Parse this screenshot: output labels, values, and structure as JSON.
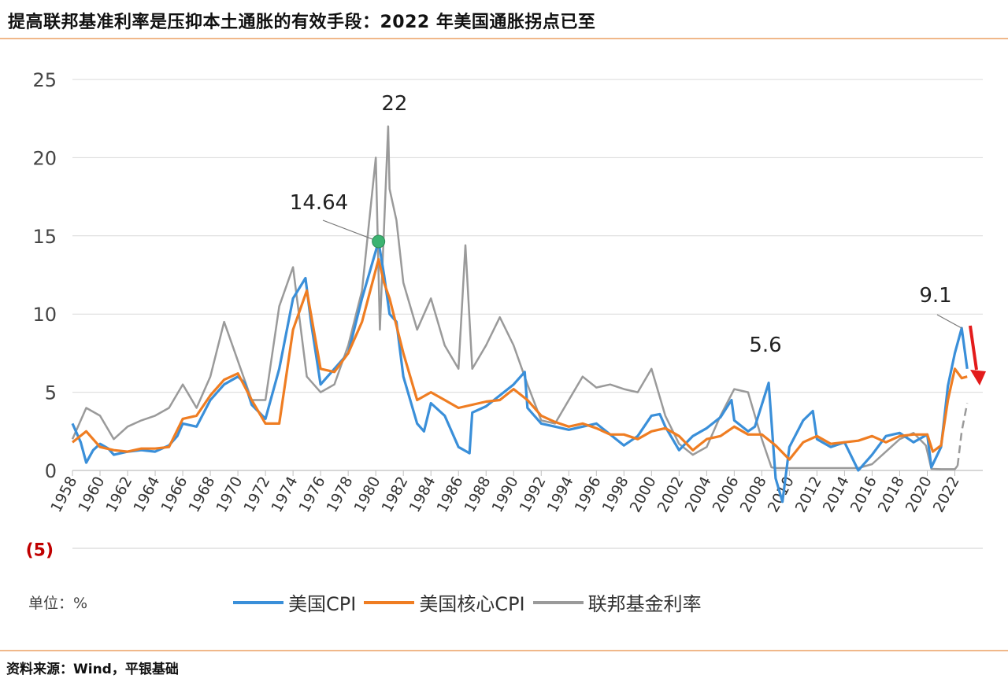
{
  "title": "提高联邦基准利率是压抑本土通胀的有效手段：2022 年美国通胀拐点已至",
  "unit_label": "单位：%",
  "source": "资料来源：Wind，平银基础",
  "chart_data": {
    "type": "line",
    "title": "提高联邦基准利率是压抑本土通胀的有效手段：2022 年美国通胀拐点已至",
    "xlabel": "",
    "ylabel": "单位：%",
    "xlim": [
      1958,
      2023
    ],
    "ylim": [
      -5,
      25
    ],
    "yticks": [
      {
        "value": 25,
        "label": "25"
      },
      {
        "value": 20,
        "label": "20"
      },
      {
        "value": 15,
        "label": "15"
      },
      {
        "value": 10,
        "label": "10"
      },
      {
        "value": 5,
        "label": "5"
      },
      {
        "value": 0,
        "label": "0"
      },
      {
        "value": -5,
        "label": "(5)"
      }
    ],
    "xticks": [
      "1958",
      "1960",
      "1962",
      "1964",
      "1966",
      "1968",
      "1970",
      "1972",
      "1974",
      "1976",
      "1978",
      "1980",
      "1982",
      "1984",
      "1986",
      "1988",
      "1990",
      "1992",
      "1994",
      "1996",
      "1998",
      "2000",
      "2002",
      "2004",
      "2006",
      "2008",
      "2010",
      "2012",
      "2014",
      "2016",
      "2018",
      "2020",
      "2022"
    ],
    "grid": true,
    "legend": "bottom",
    "series": [
      {
        "name": "美国CPI",
        "color": "#3a8fd9",
        "x": [
          1958,
          1958.6,
          1959,
          1959.5,
          1960,
          1960.6,
          1961,
          1962,
          1963,
          1964,
          1965,
          1965.6,
          1966,
          1967,
          1968,
          1969,
          1970,
          1970.5,
          1971,
          1972,
          1973,
          1974,
          1974.9,
          1975.3,
          1976,
          1977,
          1978,
          1979,
          1980.2,
          1980.6,
          1981,
          1981.5,
          1982,
          1983,
          1983.5,
          1984,
          1985,
          1986,
          1986.8,
          1987,
          1988,
          1989,
          1990,
          1990.8,
          1991,
          1992,
          1993,
          1994,
          1995,
          1996,
          1997,
          1998,
          1999,
          2000,
          2000.6,
          2001,
          2002,
          2003,
          2004,
          2005,
          2005.8,
          2006,
          2007,
          2007.5,
          2008.5,
          2009,
          2009.5,
          2010,
          2011,
          2011.7,
          2012,
          2013,
          2014,
          2015,
          2016,
          2017,
          2018,
          2019,
          2020,
          2020.3,
          2021,
          2021.5,
          2022,
          2022.5,
          2022.9
        ],
        "y": [
          3,
          1.8,
          0.5,
          1.3,
          1.7,
          1.4,
          1,
          1.2,
          1.3,
          1.2,
          1.6,
          2.2,
          3,
          2.8,
          4.5,
          5.5,
          6,
          5.6,
          4.2,
          3.3,
          6.5,
          11,
          12.3,
          9.5,
          5.5,
          6.5,
          7.5,
          11,
          14.64,
          12.5,
          10,
          9.5,
          6,
          3,
          2.5,
          4.3,
          3.5,
          1.5,
          1.1,
          3.7,
          4.1,
          4.8,
          5.5,
          6.3,
          4,
          3,
          2.8,
          2.6,
          2.8,
          3,
          2.3,
          1.6,
          2.2,
          3.5,
          3.6,
          2.8,
          1.3,
          2.2,
          2.7,
          3.4,
          4.5,
          3.2,
          2.5,
          2.8,
          5.6,
          -0.5,
          -2,
          1.5,
          3.2,
          3.8,
          2,
          1.5,
          1.8,
          0,
          1,
          2.2,
          2.4,
          1.8,
          2.3,
          0.2,
          1.5,
          5.4,
          7.5,
          9.1,
          6.5
        ]
      },
      {
        "name": "美国核心CPI",
        "color": "#ef7d22",
        "x": [
          1958,
          1959,
          1960,
          1961,
          1962,
          1963,
          1964,
          1965,
          1966,
          1967,
          1968,
          1969,
          1970,
          1971,
          1972,
          1973,
          1974,
          1975,
          1976,
          1977,
          1978,
          1979,
          1980.2,
          1980.6,
          1981,
          1982,
          1983,
          1984,
          1985,
          1986,
          1987,
          1988,
          1989,
          1990,
          1991,
          1992,
          1993,
          1994,
          1995,
          1996,
          1997,
          1998,
          1999,
          2000,
          2001,
          2002,
          2003,
          2004,
          2005,
          2006,
          2007,
          2008,
          2009,
          2010,
          2011,
          2012,
          2013,
          2014,
          2015,
          2016,
          2017,
          2018,
          2019,
          2020,
          2020.4,
          2021,
          2021.5,
          2022,
          2022.5,
          2022.9
        ],
        "y": [
          1.8,
          2.5,
          1.5,
          1.3,
          1.2,
          1.4,
          1.4,
          1.5,
          3.3,
          3.5,
          4.8,
          5.8,
          6.2,
          4.5,
          3,
          3,
          9,
          11.5,
          6.5,
          6.3,
          7.5,
          9.5,
          13.5,
          12,
          11,
          7.5,
          4.5,
          5,
          4.5,
          4,
          4.2,
          4.4,
          4.5,
          5.2,
          4.5,
          3.5,
          3.1,
          2.8,
          3,
          2.7,
          2.3,
          2.3,
          2,
          2.5,
          2.7,
          2.2,
          1.3,
          2,
          2.2,
          2.8,
          2.3,
          2.3,
          1.6,
          0.7,
          1.8,
          2.2,
          1.7,
          1.8,
          1.9,
          2.2,
          1.8,
          2.2,
          2.3,
          2.3,
          1.2,
          1.6,
          4.5,
          6.5,
          5.9,
          6
        ]
      },
      {
        "name": "联邦基金利率",
        "color": "#9a9a9a",
        "x": [
          1958,
          1959,
          1960,
          1961,
          1962,
          1963,
          1964,
          1965,
          1966,
          1967,
          1968,
          1969,
          1970,
          1971,
          1972,
          1973,
          1974,
          1975,
          1976,
          1977,
          1978,
          1979,
          1980,
          1980.3,
          1980.9,
          1981,
          1981.5,
          1982,
          1983,
          1984,
          1985,
          1986,
          1986.5,
          1987,
          1988,
          1989,
          1990,
          1991,
          1992,
          1993,
          1994,
          1995,
          1996,
          1997,
          1998,
          1999,
          2000,
          2001,
          2002,
          2003,
          2004,
          2005,
          2006,
          2007,
          2008,
          2008.7,
          2009,
          2012,
          2015,
          2016,
          2017,
          2018,
          2019,
          2019.9,
          2020.3,
          2021,
          2022,
          2022.2
        ],
        "y": [
          2,
          4,
          3.5,
          2,
          2.8,
          3.2,
          3.5,
          4,
          5.5,
          4,
          6,
          9.5,
          7,
          4.5,
          4.5,
          10.5,
          13,
          6,
          5,
          5.5,
          8,
          11.5,
          20,
          9,
          22,
          18,
          16,
          12,
          9,
          11,
          8,
          6.5,
          14.4,
          6.5,
          8,
          9.8,
          8,
          5.5,
          3.2,
          3,
          4.5,
          6,
          5.3,
          5.5,
          5.2,
          5,
          6.5,
          3.5,
          1.7,
          1,
          1.5,
          3.5,
          5.2,
          5,
          2,
          0.2,
          0.15,
          0.15,
          0.15,
          0.4,
          1.2,
          2,
          2.4,
          1.6,
          0.1,
          0.08,
          0.08,
          0.3
        ]
      },
      {
        "name": "联邦基金利率",
        "color": "#9a9a9a",
        "style": "dashed",
        "x": [
          2022.2,
          2022.5,
          2022.9
        ],
        "y": [
          0.3,
          2.5,
          4.3
        ]
      }
    ],
    "annotations": [
      {
        "text": "22",
        "x": 1980.9,
        "y": 22
      },
      {
        "text": "14.64",
        "x": 1980.2,
        "y": 14.64,
        "marker_color": "#3cb371"
      },
      {
        "text": "5.6",
        "x": 2008.5,
        "y": 5.6
      },
      {
        "text": "9.1",
        "x": 2022.5,
        "y": 9.1
      },
      {
        "arrow": "down",
        "color": "#e31b1b",
        "x": 2022.9,
        "from": 9,
        "to": 5.5
      }
    ]
  }
}
